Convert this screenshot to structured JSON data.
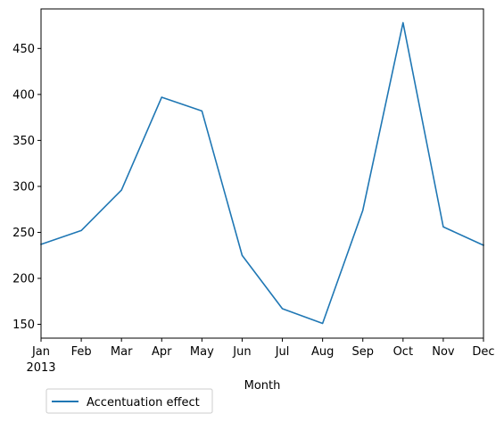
{
  "chart_data": {
    "type": "line",
    "title": "",
    "xlabel": "Month",
    "ylabel": "",
    "year_label": "2013",
    "categories": [
      "Jan",
      "Feb",
      "Mar",
      "Apr",
      "May",
      "Jun",
      "Jul",
      "Aug",
      "Sep",
      "Oct",
      "Nov",
      "Dec"
    ],
    "y_ticks": [
      150,
      200,
      250,
      300,
      350,
      400,
      450
    ],
    "ylim": [
      135,
      493
    ],
    "grid": false,
    "legend_position": "below-left",
    "series": [
      {
        "name": "Accentuation effect",
        "color": "#1f77b4",
        "values": [
          237,
          252,
          296,
          397,
          382,
          225,
          167,
          151,
          274,
          478,
          256,
          236
        ]
      }
    ]
  }
}
